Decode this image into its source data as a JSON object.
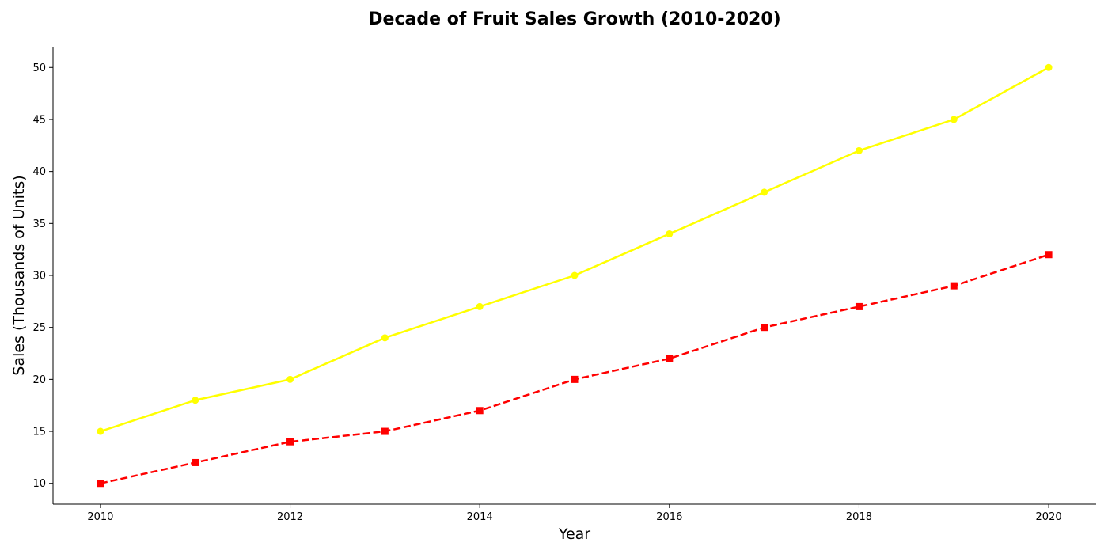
{
  "chart_data": {
    "type": "line",
    "title": "Decade of Fruit Sales Growth (2010-2020)",
    "xlabel": "Year",
    "ylabel": "Sales (Thousands of Units)",
    "x": [
      2010,
      2011,
      2012,
      2013,
      2014,
      2015,
      2016,
      2017,
      2018,
      2019,
      2020
    ],
    "xlim": [
      2009.5,
      2020.5
    ],
    "ylim": [
      8,
      52
    ],
    "x_ticks": [
      2010,
      2012,
      2014,
      2016,
      2018,
      2020
    ],
    "y_ticks": [
      10,
      15,
      20,
      25,
      30,
      35,
      40,
      45,
      50
    ],
    "grid": false,
    "legend": "none",
    "series": [
      {
        "color": "#ffff00",
        "line_style": "solid",
        "marker": "circle",
        "values": [
          15,
          18,
          20,
          24,
          27,
          30,
          34,
          38,
          42,
          45,
          50
        ]
      },
      {
        "color": "#ff0000",
        "line_style": "dashed",
        "marker": "square",
        "values": [
          10,
          12,
          14,
          15,
          17,
          20,
          22,
          25,
          27,
          29,
          32
        ]
      }
    ]
  }
}
